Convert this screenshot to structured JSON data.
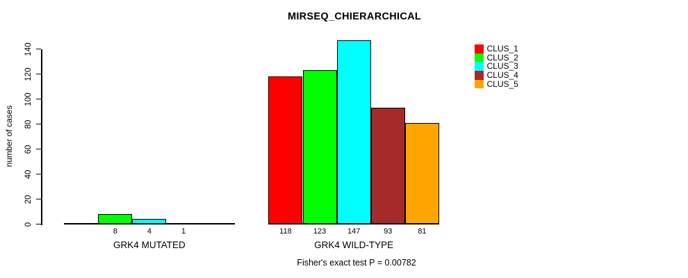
{
  "chart_data": {
    "type": "bar",
    "title": "MIRSEQ_CHIERARCHICAL",
    "ylabel": "number of cases",
    "xlabel": "",
    "groups": [
      "GRK4 MUTATED",
      "GRK4 WILD-TYPE"
    ],
    "series": [
      {
        "name": "CLUS_1",
        "color": "#FF0000",
        "values": [
          0,
          118
        ]
      },
      {
        "name": "CLUS_2",
        "color": "#00FF00",
        "values": [
          8,
          123
        ]
      },
      {
        "name": "CLUS_3",
        "color": "#00FFFF",
        "values": [
          4,
          147
        ]
      },
      {
        "name": "CLUS_4",
        "color": "#A52A2A",
        "values": [
          1,
          93
        ]
      },
      {
        "name": "CLUS_5",
        "color": "#FFA500",
        "values": [
          0,
          81
        ]
      }
    ],
    "bar_value_labels": [
      [
        null,
        8,
        4,
        1,
        null
      ],
      [
        118,
        123,
        147,
        93,
        81
      ]
    ],
    "yticks": [
      0,
      20,
      40,
      60,
      80,
      100,
      120,
      140
    ],
    "ylim": [
      0,
      140
    ],
    "grid": false,
    "legend": {
      "position": "top-right",
      "entries": [
        "CLUS_1",
        "CLUS_2",
        "CLUS_3",
        "CLUS_4",
        "CLUS_5"
      ]
    },
    "annotation": "Fisher's exact test P = 0.00782"
  }
}
